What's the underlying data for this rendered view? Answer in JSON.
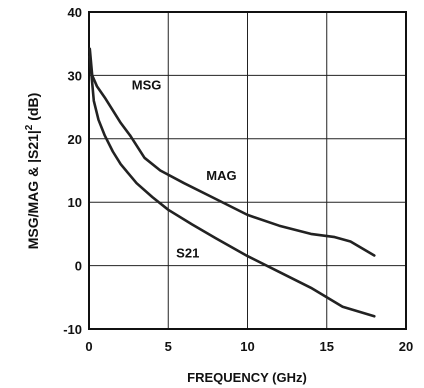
{
  "chart_data": {
    "type": "line",
    "xlabel": "FREQUENCY (GHz)",
    "ylabel_parts": [
      "MSG/MAG & |S21|",
      "2",
      " (dB)"
    ],
    "xlim": [
      0,
      20
    ],
    "ylim": [
      -10,
      40
    ],
    "xticks": [
      0,
      5,
      10,
      15,
      20
    ],
    "yticks": [
      -10,
      0,
      10,
      20,
      30,
      40
    ],
    "grid": true,
    "series": [
      {
        "name": "MSG",
        "x": [
          0.05,
          0.2,
          0.5,
          1.0,
          1.5,
          2.0,
          2.6
        ],
        "y": [
          34.2,
          30.0,
          28.3,
          26.5,
          24.5,
          22.5,
          20.5
        ]
      },
      {
        "name": "MAG",
        "x": [
          2.6,
          3.5,
          4.5,
          6.0,
          8.0,
          10.0,
          12.0,
          14.0,
          15.5,
          16.5,
          18.0
        ],
        "y": [
          20.5,
          17.0,
          15.0,
          13.0,
          10.5,
          8.0,
          6.3,
          5.0,
          4.5,
          3.8,
          1.6
        ]
      },
      {
        "name": "S21",
        "x": [
          0.05,
          0.3,
          0.6,
          1.0,
          1.5,
          2.0,
          3.0,
          4.0,
          5.0,
          6.5,
          8.0,
          10.0,
          12.0,
          14.0,
          16.0,
          18.0
        ],
        "y": [
          33.0,
          26.0,
          23.0,
          20.5,
          18.0,
          16.0,
          13.0,
          10.8,
          8.8,
          6.5,
          4.3,
          1.5,
          -1.0,
          -3.5,
          -6.5,
          -8.0
        ]
      }
    ],
    "annotations": [
      {
        "text": "MSG",
        "x": 2.7,
        "y": 27.8
      },
      {
        "text": "MAG",
        "x": 7.4,
        "y": 13.5
      },
      {
        "text": "S21",
        "x": 5.5,
        "y": 1.3
      }
    ]
  }
}
